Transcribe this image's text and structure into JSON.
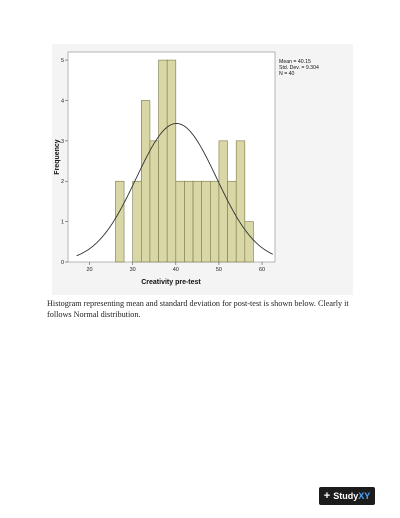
{
  "chart_data": {
    "type": "bar",
    "subtype": "histogram",
    "xlabel": "Creativity pre-test",
    "ylabel": "Frequency",
    "xlim": [
      15,
      63
    ],
    "ylim": [
      0,
      5.2
    ],
    "x_ticks": [
      20,
      30,
      40,
      50,
      60
    ],
    "y_ticks": [
      0,
      1,
      2,
      3,
      4,
      5
    ],
    "bin_width": 2,
    "bins": [
      {
        "x0": 26,
        "count": 2
      },
      {
        "x0": 30,
        "count": 2
      },
      {
        "x0": 32,
        "count": 4
      },
      {
        "x0": 34,
        "count": 3
      },
      {
        "x0": 36,
        "count": 5
      },
      {
        "x0": 38,
        "count": 5
      },
      {
        "x0": 40,
        "count": 2
      },
      {
        "x0": 42,
        "count": 2
      },
      {
        "x0": 44,
        "count": 2
      },
      {
        "x0": 46,
        "count": 2
      },
      {
        "x0": 48,
        "count": 2
      },
      {
        "x0": 50,
        "count": 3
      },
      {
        "x0": 52,
        "count": 2
      },
      {
        "x0": 54,
        "count": 3
      },
      {
        "x0": 56,
        "count": 1
      }
    ],
    "normal_curve": {
      "mean": 40.15,
      "sd": 9.304,
      "n": 40
    },
    "stats_box": [
      "Mean = 40.15",
      "Std. Dev. = 9.304",
      "N = 40"
    ],
    "bar_color": "#d8d7a5",
    "bar_edge_color": "#7a7a4a",
    "curve_color": "#333333"
  },
  "caption": {
    "line1": "Histogram representing mean and standard deviation for post-test is shown below. Clearly it",
    "line2": "follows Normal distribution."
  },
  "badge": {
    "plus": "+",
    "brand_a": "Study",
    "brand_b": "XY"
  }
}
